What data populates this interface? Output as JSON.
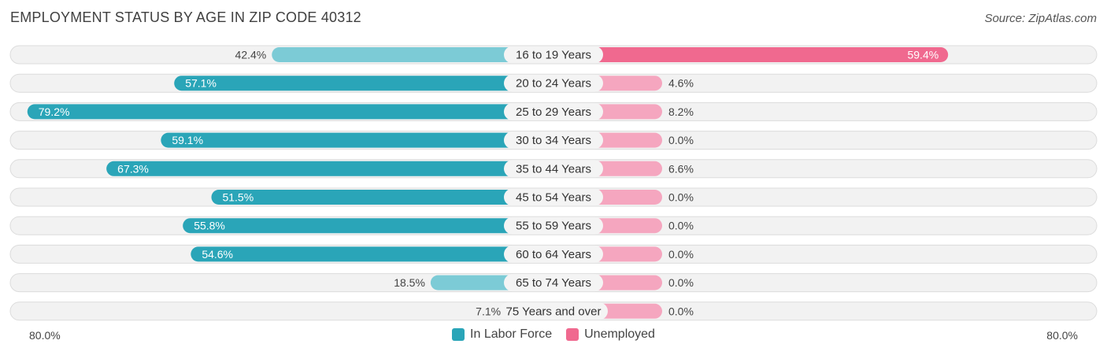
{
  "header": {
    "title": "EMPLOYMENT STATUS BY AGE IN ZIP CODE 40312",
    "source": "Source: ZipAtlas.com"
  },
  "axis": {
    "left_label": "80.0%",
    "right_label": "80.0%"
  },
  "legend": {
    "labor_label": "In Labor Force",
    "unemployed_label": "Unemployed"
  },
  "colors": {
    "labor_dark": "#2aa5b8",
    "labor_light": "#7ccbd6",
    "unemployed_dark": "#f0698f",
    "unemployed_light": "#f5a6bf"
  },
  "chart_data": {
    "type": "bar",
    "title": "EMPLOYMENT STATUS BY AGE IN ZIP CODE 40312",
    "orientation": "diverging-horizontal",
    "max": 80.0,
    "categories": [
      "16 to 19 Years",
      "20 to 24 Years",
      "25 to 29 Years",
      "30 to 34 Years",
      "35 to 44 Years",
      "45 to 54 Years",
      "55 to 59 Years",
      "60 to 64 Years",
      "65 to 74 Years",
      "75 Years and over"
    ],
    "series": [
      {
        "name": "In Labor Force",
        "values": [
          42.4,
          57.1,
          79.2,
          59.1,
          67.3,
          51.5,
          55.8,
          54.6,
          18.5,
          7.1
        ]
      },
      {
        "name": "Unemployed",
        "values": [
          59.4,
          4.6,
          8.2,
          0.0,
          6.6,
          0.0,
          0.0,
          0.0,
          0.0,
          0.0
        ]
      }
    ]
  }
}
